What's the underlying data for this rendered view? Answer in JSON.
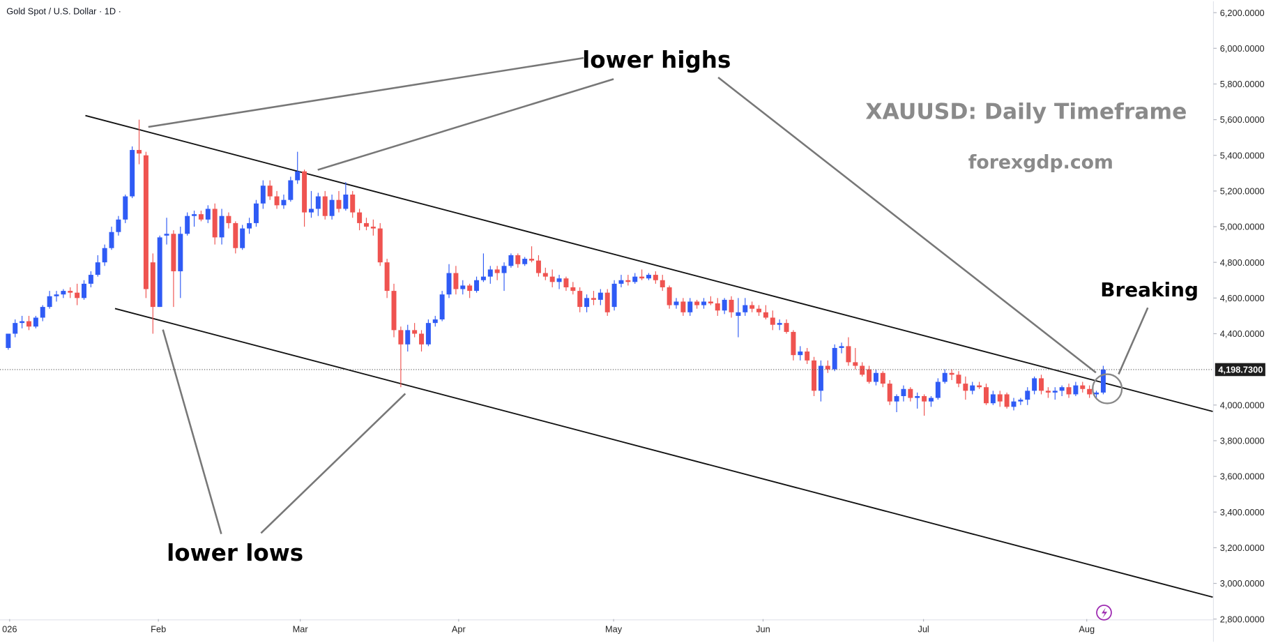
{
  "chart_data": {
    "type": "candlestick",
    "title": "Gold Spot / U.S. Dollar · 1D ·",
    "annotations": {
      "highs": "lower highs",
      "lows": "lower lows",
      "breaking": "Breaking",
      "heading": "XAUUSD: Daily Timeframe",
      "site": "forexgdp.com"
    },
    "up_color": "#2f5bf5",
    "down_color": "#ef5350",
    "xlim": [
      -1.2,
      175
    ],
    "ylim": [
      2800,
      6264
    ],
    "xticks": [
      {
        "value": 0.2,
        "label": "026"
      },
      {
        "value": 21.8,
        "label": "Feb"
      },
      {
        "value": 42.4,
        "label": "Mar"
      },
      {
        "value": 65.4,
        "label": "Apr"
      },
      {
        "value": 87.9,
        "label": "May"
      },
      {
        "value": 109.6,
        "label": "Jun"
      },
      {
        "value": 132.9,
        "label": "Jul"
      },
      {
        "value": 156.6,
        "label": "Aug"
      }
    ],
    "yticks": [
      {
        "value": 2800,
        "label": "2,800.0000"
      },
      {
        "value": 3000,
        "label": "3,000.0000"
      },
      {
        "value": 3200,
        "label": "3,200.0000"
      },
      {
        "value": 3400,
        "label": "3,400.0000"
      },
      {
        "value": 3600,
        "label": "3,600.0000"
      },
      {
        "value": 3800,
        "label": "3,800.0000"
      },
      {
        "value": 4000,
        "label": "4,000.0000"
      },
      {
        "value": 4400,
        "label": "4,400.0000"
      },
      {
        "value": 4600,
        "label": "4,600.0000"
      },
      {
        "value": 4800,
        "label": "4,800.0000"
      },
      {
        "value": 5000,
        "label": "5,000.0000"
      },
      {
        "value": 5200,
        "label": "5,200.0000"
      },
      {
        "value": 5400,
        "label": "5,400.0000"
      },
      {
        "value": 5600,
        "label": "5,600.0000"
      },
      {
        "value": 5800,
        "label": "5,800.0000"
      },
      {
        "value": 6000,
        "label": "6,000.0000"
      },
      {
        "value": 6200,
        "label": "6,200.0000"
      }
    ],
    "last_price": {
      "value": 4198.73,
      "label": "4,198.7300"
    },
    "trendlines": [
      {
        "x": [
          11.2,
          174.9
        ],
        "y": [
          5623,
          3964
        ]
      },
      {
        "x": [
          15.5,
          174.9
        ],
        "y": [
          4541,
          2923
        ]
      }
    ],
    "candles": [
      [
        4320,
        4400,
        4310,
        4400
      ],
      [
        4400,
        4480,
        4380,
        4460
      ],
      [
        4460,
        4500,
        4430,
        4470
      ],
      [
        4470,
        4500,
        4420,
        4440
      ],
      [
        4440,
        4500,
        4430,
        4490
      ],
      [
        4490,
        4560,
        4470,
        4550
      ],
      [
        4550,
        4640,
        4540,
        4610
      ],
      [
        4610,
        4640,
        4580,
        4620
      ],
      [
        4620,
        4650,
        4600,
        4640
      ],
      [
        4640,
        4660,
        4600,
        4630
      ],
      [
        4630,
        4680,
        4560,
        4600
      ],
      [
        4600,
        4700,
        4590,
        4680
      ],
      [
        4680,
        4750,
        4660,
        4730
      ],
      [
        4730,
        4840,
        4720,
        4800
      ],
      [
        4800,
        4900,
        4780,
        4880
      ],
      [
        4880,
        5000,
        4870,
        4970
      ],
      [
        4970,
        5060,
        4950,
        5040
      ],
      [
        5040,
        5180,
        5020,
        5170
      ],
      [
        5170,
        5450,
        5160,
        5430
      ],
      [
        5430,
        5600,
        5350,
        5410
      ],
      [
        5400,
        5420,
        4600,
        4650
      ],
      [
        4800,
        4850,
        4400,
        4550
      ],
      [
        4550,
        4950,
        4550,
        4940
      ],
      [
        4950,
        5050,
        4900,
        4960
      ],
      [
        4960,
        4980,
        4550,
        4750
      ],
      [
        4750,
        5000,
        4600,
        4960
      ],
      [
        4960,
        5080,
        4950,
        5060
      ],
      [
        5060,
        5090,
        5000,
        5070
      ],
      [
        5070,
        5090,
        5030,
        5040
      ],
      [
        5040,
        5120,
        5020,
        5100
      ],
      [
        5100,
        5130,
        4900,
        4940
      ],
      [
        4940,
        5100,
        4900,
        5060
      ],
      [
        5060,
        5080,
        4990,
        5020
      ],
      [
        5020,
        5030,
        4850,
        4880
      ],
      [
        4880,
        5010,
        4870,
        4990
      ],
      [
        4990,
        5050,
        4960,
        5020
      ],
      [
        5020,
        5150,
        5000,
        5130
      ],
      [
        5130,
        5260,
        5100,
        5230
      ],
      [
        5230,
        5260,
        5150,
        5170
      ],
      [
        5170,
        5200,
        5100,
        5120
      ],
      [
        5120,
        5180,
        5100,
        5150
      ],
      [
        5150,
        5280,
        5140,
        5260
      ],
      [
        5260,
        5420,
        5240,
        5310
      ],
      [
        5310,
        5320,
        5000,
        5080
      ],
      [
        5080,
        5200,
        5050,
        5100
      ],
      [
        5100,
        5190,
        5060,
        5170
      ],
      [
        5170,
        5200,
        5040,
        5060
      ],
      [
        5060,
        5180,
        5040,
        5150
      ],
      [
        5150,
        5200,
        5080,
        5100
      ],
      [
        5100,
        5250,
        5090,
        5180
      ],
      [
        5180,
        5200,
        5050,
        5080
      ],
      [
        5080,
        5100,
        4980,
        5020
      ],
      [
        5020,
        5050,
        4980,
        5000
      ],
      [
        5000,
        5040,
        4950,
        4990
      ],
      [
        4990,
        5020,
        4780,
        4800
      ],
      [
        4800,
        4820,
        4600,
        4640
      ],
      [
        4640,
        4680,
        4380,
        4420
      ],
      [
        4420,
        4440,
        4100,
        4340
      ],
      [
        4340,
        4450,
        4300,
        4420
      ],
      [
        4420,
        4460,
        4380,
        4400
      ],
      [
        4400,
        4420,
        4300,
        4340
      ],
      [
        4340,
        4480,
        4330,
        4460
      ],
      [
        4460,
        4500,
        4440,
        4480
      ],
      [
        4480,
        4640,
        4470,
        4620
      ],
      [
        4620,
        4790,
        4600,
        4740
      ],
      [
        4740,
        4780,
        4620,
        4650
      ],
      [
        4650,
        4700,
        4620,
        4670
      ],
      [
        4670,
        4680,
        4600,
        4640
      ],
      [
        4640,
        4720,
        4630,
        4700
      ],
      [
        4700,
        4850,
        4690,
        4720
      ],
      [
        4720,
        4780,
        4680,
        4760
      ],
      [
        4760,
        4780,
        4700,
        4740
      ],
      [
        4740,
        4800,
        4640,
        4780
      ],
      [
        4780,
        4850,
        4770,
        4840
      ],
      [
        4840,
        4850,
        4770,
        4790
      ],
      [
        4790,
        4830,
        4780,
        4820
      ],
      [
        4820,
        4890,
        4800,
        4810
      ],
      [
        4810,
        4840,
        4720,
        4740
      ],
      [
        4740,
        4770,
        4700,
        4720
      ],
      [
        4720,
        4760,
        4660,
        4690
      ],
      [
        4690,
        4730,
        4650,
        4710
      ],
      [
        4710,
        4720,
        4640,
        4660
      ],
      [
        4660,
        4690,
        4620,
        4640
      ],
      [
        4640,
        4660,
        4520,
        4550
      ],
      [
        4550,
        4620,
        4520,
        4600
      ],
      [
        4600,
        4640,
        4560,
        4590
      ],
      [
        4590,
        4650,
        4560,
        4630
      ],
      [
        4630,
        4650,
        4500,
        4520
      ],
      [
        4550,
        4700,
        4530,
        4680
      ],
      [
        4680,
        4730,
        4660,
        4700
      ],
      [
        4700,
        4730,
        4670,
        4690
      ],
      [
        4690,
        4740,
        4680,
        4720
      ],
      [
        4720,
        4760,
        4700,
        4710
      ],
      [
        4710,
        4740,
        4700,
        4730
      ],
      [
        4730,
        4750,
        4680,
        4700
      ],
      [
        4700,
        4730,
        4640,
        4660
      ],
      [
        4660,
        4670,
        4540,
        4560
      ],
      [
        4560,
        4600,
        4540,
        4580
      ],
      [
        4580,
        4600,
        4500,
        4520
      ],
      [
        4520,
        4600,
        4500,
        4580
      ],
      [
        4580,
        4590,
        4540,
        4560
      ],
      [
        4560,
        4600,
        4540,
        4580
      ],
      [
        4580,
        4610,
        4560,
        4570
      ],
      [
        4570,
        4600,
        4500,
        4530
      ],
      [
        4530,
        4600,
        4510,
        4590
      ],
      [
        4590,
        4610,
        4490,
        4520
      ],
      [
        4500,
        4600,
        4380,
        4520
      ],
      [
        4520,
        4600,
        4500,
        4560
      ],
      [
        4560,
        4580,
        4520,
        4540
      ],
      [
        4540,
        4560,
        4500,
        4520
      ],
      [
        4520,
        4560,
        4480,
        4490
      ],
      [
        4490,
        4530,
        4420,
        4450
      ],
      [
        4450,
        4480,
        4420,
        4460
      ],
      [
        4460,
        4480,
        4400,
        4410
      ],
      [
        4410,
        4420,
        4250,
        4280
      ],
      [
        4280,
        4330,
        4250,
        4300
      ],
      [
        4300,
        4320,
        4230,
        4250
      ],
      [
        4250,
        4270,
        4050,
        4080
      ],
      [
        4080,
        4250,
        4020,
        4220
      ],
      [
        4220,
        4250,
        4180,
        4200
      ],
      [
        4200,
        4340,
        4190,
        4320
      ],
      [
        4320,
        4350,
        4290,
        4330
      ],
      [
        4330,
        4380,
        4220,
        4240
      ],
      [
        4240,
        4320,
        4200,
        4220
      ],
      [
        4220,
        4240,
        4160,
        4170
      ],
      [
        4200,
        4220,
        4120,
        4130
      ],
      [
        4130,
        4200,
        4110,
        4180
      ],
      [
        4180,
        4190,
        4100,
        4120
      ],
      [
        4120,
        4140,
        4000,
        4020
      ],
      [
        4020,
        4060,
        3960,
        4050
      ],
      [
        4050,
        4110,
        4020,
        4090
      ],
      [
        4090,
        4100,
        4020,
        4040
      ],
      [
        4040,
        4070,
        3980,
        4050
      ],
      [
        4050,
        4060,
        3940,
        4020
      ],
      [
        4020,
        4050,
        3990,
        4040
      ],
      [
        4040,
        4150,
        4030,
        4130
      ],
      [
        4130,
        4200,
        4120,
        4180
      ],
      [
        4180,
        4200,
        4140,
        4170
      ],
      [
        4170,
        4190,
        4100,
        4120
      ],
      [
        4120,
        4160,
        4030,
        4080
      ],
      [
        4080,
        4130,
        4060,
        4110
      ],
      [
        4110,
        4130,
        4090,
        4100
      ],
      [
        4100,
        4120,
        4000,
        4010
      ],
      [
        4010,
        4080,
        4000,
        4060
      ],
      [
        4060,
        4080,
        3990,
        4020
      ],
      [
        4060,
        4070,
        3980,
        3990
      ],
      [
        3990,
        4040,
        3970,
        4020
      ],
      [
        4020,
        4040,
        4000,
        4030
      ],
      [
        4030,
        4100,
        4000,
        4080
      ],
      [
        4080,
        4160,
        4060,
        4150
      ],
      [
        4150,
        4170,
        4060,
        4080
      ],
      [
        4080,
        4100,
        4040,
        4070
      ],
      [
        4070,
        4100,
        4030,
        4080
      ],
      [
        4080,
        4110,
        4050,
        4100
      ],
      [
        4100,
        4120,
        4040,
        4060
      ],
      [
        4060,
        4130,
        4050,
        4110
      ],
      [
        4110,
        4130,
        4070,
        4090
      ],
      [
        4090,
        4110,
        4040,
        4060
      ],
      [
        4060,
        4080,
        4040,
        4070
      ],
      [
        4070,
        4220,
        4060,
        4198.73
      ]
    ]
  }
}
